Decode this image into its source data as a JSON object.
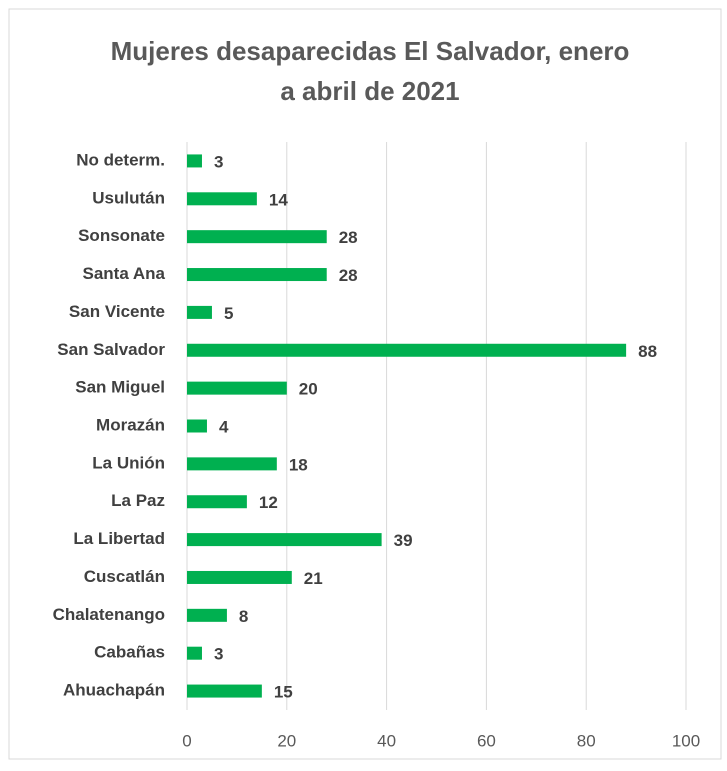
{
  "chart_data": {
    "type": "hbar",
    "title": [
      "Mujeres desaparecidas El Salvador, enero",
      "a abril de 2021"
    ],
    "categories": [
      "No determ.",
      "Usulután",
      "Sonsonate",
      "Santa Ana",
      "San Vicente",
      "San Salvador",
      "San Miguel",
      "Morazán",
      "La Unión",
      "La Paz",
      "La Libertad",
      "Cuscatlán",
      "Chalatenango",
      "Cabañas",
      "Ahuachapán"
    ],
    "values": [
      3,
      14,
      28,
      28,
      5,
      88,
      20,
      4,
      18,
      12,
      39,
      21,
      8,
      3,
      15
    ],
    "color": "#00b050",
    "xlim": [
      0,
      100
    ],
    "xticks": [
      0,
      20,
      40,
      60,
      80,
      100
    ],
    "grid": true
  }
}
